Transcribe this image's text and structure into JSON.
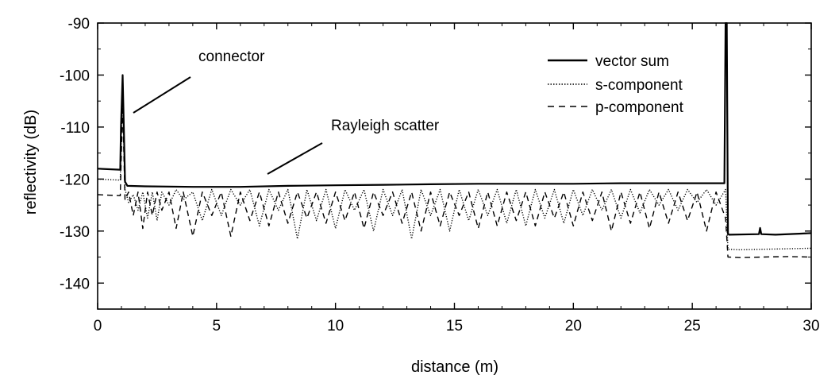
{
  "chart_data": {
    "type": "line",
    "title": "",
    "xlabel": "distance (m)",
    "ylabel": "reflectivity (dB)",
    "xlim": [
      0,
      30
    ],
    "ylim": [
      -145,
      -90
    ],
    "xticks": [
      0,
      5,
      10,
      15,
      20,
      25,
      30
    ],
    "xtick_labels": [
      "0",
      "5",
      "10",
      "15",
      "20",
      "25",
      "30"
    ],
    "yticks": [
      -90,
      -100,
      -110,
      -120,
      -130,
      -140
    ],
    "ytick_labels": [
      "-90",
      "-100",
      "-110",
      "-120",
      "-130",
      "-140"
    ],
    "grid": false,
    "legend_position": "top-right",
    "annotations": [
      {
        "text": "connector",
        "x": 1.1,
        "y": -100
      },
      {
        "text": "Rayleigh scatter",
        "x": 7.3,
        "y": -121.3
      }
    ],
    "series": [
      {
        "name": "vector sum",
        "style": "solid",
        "x": [
          0,
          0.95,
          0.98,
          1.05,
          1.1,
          1.15,
          1.25,
          2,
          4,
          6,
          8,
          10,
          12,
          14,
          16,
          18,
          20,
          22,
          24,
          26,
          26.35,
          26.4,
          26.45,
          26.5,
          26.55,
          27.8,
          27.85,
          27.9,
          28.5,
          29.5,
          30
        ],
        "y": [
          -118,
          -118.2,
          -110,
          -100,
          -110,
          -120.5,
          -121.3,
          -121.4,
          -121.5,
          -121.5,
          -121.3,
          -121.2,
          -121.1,
          -121,
          -120.9,
          -120.9,
          -120.9,
          -120.8,
          -120.8,
          -120.8,
          -120.8,
          -90,
          -90,
          -130.5,
          -130.7,
          -130.6,
          -129.4,
          -130.6,
          -130.7,
          -130.5,
          -130.4
        ]
      },
      {
        "name": "s-component",
        "style": "dotted",
        "x": [
          0,
          0.95,
          1.05,
          1.15,
          1.3,
          1.5,
          1.7,
          1.9,
          2.1,
          2.3,
          2.5,
          2.7,
          3,
          3.3,
          3.6,
          4,
          4.4,
          4.8,
          5.2,
          5.6,
          6,
          6.4,
          6.8,
          7.2,
          7.6,
          8,
          8.4,
          8.8,
          9.2,
          9.6,
          10,
          10.4,
          10.8,
          11.2,
          11.6,
          12,
          12.4,
          12.8,
          13.2,
          13.6,
          14,
          14.4,
          14.8,
          15.2,
          15.6,
          16,
          16.4,
          16.8,
          17.2,
          17.6,
          18,
          18.4,
          18.8,
          19.2,
          19.6,
          20,
          20.4,
          20.8,
          21.2,
          21.6,
          22,
          22.4,
          22.8,
          23.2,
          23.6,
          24,
          24.4,
          24.8,
          25.2,
          25.6,
          26,
          26.4,
          26.5,
          27,
          28,
          29,
          30
        ],
        "y": [
          -120,
          -120.2,
          -103,
          -122,
          -124.5,
          -123,
          -126,
          -122.5,
          -127.5,
          -122.5,
          -128,
          -122.5,
          -125,
          -122,
          -124,
          -122.5,
          -128,
          -122,
          -127,
          -122,
          -125,
          -122,
          -129,
          -122,
          -126,
          -122,
          -131.5,
          -122,
          -128,
          -122,
          -129.5,
          -122,
          -126,
          -122,
          -130,
          -122,
          -127,
          -122,
          -131.5,
          -122,
          -127,
          -122,
          -130,
          -122,
          -128,
          -122,
          -127,
          -122,
          -128.5,
          -122,
          -129,
          -122,
          -127.5,
          -122,
          -128.5,
          -122,
          -127,
          -122,
          -126,
          -122,
          -127.5,
          -122,
          -126.5,
          -122,
          -125,
          -122,
          -126,
          -122,
          -124.5,
          -122,
          -125,
          -122,
          -133.5,
          -133.6,
          -133.5,
          -133.4,
          -133.3
        ]
      },
      {
        "name": "p-component",
        "style": "dashed",
        "x": [
          0,
          0.95,
          1.05,
          1.15,
          1.3,
          1.5,
          1.7,
          1.9,
          2.1,
          2.3,
          2.5,
          2.7,
          3,
          3.3,
          3.6,
          4,
          4.4,
          4.8,
          5.2,
          5.6,
          6,
          6.4,
          6.8,
          7.2,
          7.6,
          8,
          8.4,
          8.8,
          9.2,
          9.6,
          10,
          10.4,
          10.8,
          11.2,
          11.6,
          12,
          12.4,
          12.8,
          13.2,
          13.6,
          14,
          14.4,
          14.8,
          15.2,
          15.6,
          16,
          16.4,
          16.8,
          17.2,
          17.6,
          18,
          18.4,
          18.8,
          19.2,
          19.6,
          20,
          20.4,
          20.8,
          21.2,
          21.6,
          22,
          22.4,
          22.8,
          23.2,
          23.6,
          24,
          24.4,
          24.8,
          25.2,
          25.6,
          26,
          26.4,
          26.5,
          27,
          28,
          29,
          30
        ],
        "y": [
          -123,
          -123.2,
          -106,
          -124,
          -122.5,
          -127,
          -122.5,
          -129.5,
          -122.5,
          -127,
          -122.5,
          -126,
          -122.5,
          -129.5,
          -122.5,
          -131,
          -122.5,
          -127,
          -122.5,
          -131,
          -122.5,
          -128,
          -122.5,
          -129,
          -122.5,
          -128.5,
          -122.5,
          -127.5,
          -122.5,
          -128.5,
          -122.5,
          -128,
          -122.5,
          -129.5,
          -122.5,
          -127,
          -122.5,
          -128.5,
          -122.5,
          -130,
          -122.5,
          -129,
          -122.5,
          -127,
          -122.5,
          -129.5,
          -122.5,
          -129,
          -122.5,
          -128,
          -122.5,
          -129,
          -122.5,
          -127.5,
          -122.5,
          -129,
          -122.5,
          -128,
          -122.5,
          -130,
          -122.5,
          -128.5,
          -122.5,
          -129.5,
          -122.5,
          -128.5,
          -122.5,
          -128,
          -122.5,
          -130,
          -122.5,
          -127.5,
          -135,
          -135.1,
          -135,
          -134.9,
          -135
        ]
      }
    ]
  }
}
